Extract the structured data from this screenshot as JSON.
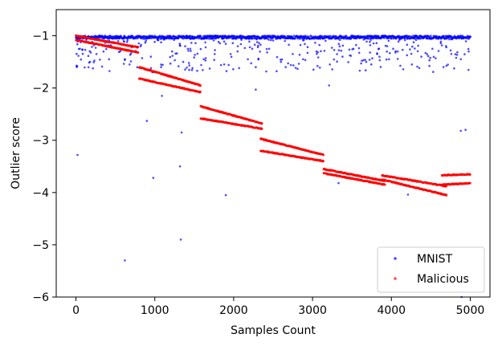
{
  "chart_data": {
    "type": "scatter",
    "xlabel": "Samples Count",
    "ylabel": "Outlier score",
    "xlim": [
      -250,
      5250
    ],
    "ylim": [
      -6,
      -0.5
    ],
    "x_ticks": [
      0,
      1000,
      2000,
      3000,
      4000,
      5000
    ],
    "x_tick_labels": [
      "0",
      "1000",
      "2000",
      "3000",
      "4000",
      "5000"
    ],
    "y_ticks": [
      -6,
      -5,
      -4,
      -3,
      -2,
      -1
    ],
    "y_tick_labels": [
      "−6",
      "−5",
      "−4",
      "−3",
      "−2",
      "−1"
    ],
    "grid": false,
    "legend_position": "lower-right",
    "series": [
      {
        "name": "MNIST",
        "color": "#0000ff",
        "marker": "dot",
        "description_points": "dense band near -1 across all x, scattered down to about -1.7",
        "points": [
          [
            0,
            -1.0
          ],
          [
            100,
            -1.02
          ],
          [
            200,
            -1.05
          ],
          [
            300,
            -1.0
          ],
          [
            400,
            -1.03
          ],
          [
            500,
            -1.01
          ],
          [
            600,
            -1.04
          ],
          [
            700,
            -1.0
          ],
          [
            800,
            -1.02
          ],
          [
            900,
            -1.05
          ],
          [
            1000,
            -1.0
          ],
          [
            1100,
            -1.03
          ],
          [
            1200,
            -1.01
          ],
          [
            1300,
            -1.04
          ],
          [
            1400,
            -1.0
          ],
          [
            1500,
            -1.02
          ],
          [
            1600,
            -1.05
          ],
          [
            1700,
            -1.0
          ],
          [
            1800,
            -1.03
          ],
          [
            1900,
            -1.01
          ],
          [
            2000,
            -1.04
          ],
          [
            2100,
            -1.0
          ],
          [
            2200,
            -1.02
          ],
          [
            2300,
            -1.05
          ],
          [
            2400,
            -1.0
          ],
          [
            2500,
            -1.03
          ],
          [
            2600,
            -1.01
          ],
          [
            2700,
            -1.04
          ],
          [
            2800,
            -1.0
          ],
          [
            2900,
            -1.02
          ],
          [
            3000,
            -1.05
          ],
          [
            3100,
            -1.0
          ],
          [
            3200,
            -1.03
          ],
          [
            3300,
            -1.01
          ],
          [
            3400,
            -1.04
          ],
          [
            3500,
            -1.0
          ],
          [
            3600,
            -1.02
          ],
          [
            3700,
            -1.05
          ],
          [
            3800,
            -1.0
          ],
          [
            3900,
            -1.03
          ],
          [
            4000,
            -1.01
          ],
          [
            4100,
            -1.04
          ],
          [
            4200,
            -1.0
          ],
          [
            4300,
            -1.02
          ],
          [
            4400,
            -1.05
          ],
          [
            4500,
            -1.0
          ],
          [
            4600,
            -1.03
          ],
          [
            4700,
            -1.01
          ],
          [
            4800,
            -1.04
          ],
          [
            4900,
            -1.0
          ],
          [
            5000,
            -1.02
          ],
          [
            50,
            -1.25
          ],
          [
            180,
            -1.5
          ],
          [
            260,
            -1.35
          ],
          [
            420,
            -1.45
          ],
          [
            560,
            -1.3
          ],
          [
            680,
            -1.55
          ],
          [
            820,
            -1.2
          ],
          [
            950,
            -1.4
          ],
          [
            1080,
            -1.6
          ],
          [
            1220,
            -1.3
          ],
          [
            1360,
            -1.5
          ],
          [
            1450,
            -1.25
          ],
          [
            1620,
            -1.45
          ],
          [
            1760,
            -1.35
          ],
          [
            1880,
            -1.55
          ],
          [
            2050,
            -1.3
          ],
          [
            2180,
            -1.45
          ],
          [
            2280,
            -1.6
          ],
          [
            2450,
            -1.25
          ],
          [
            2600,
            -1.5
          ],
          [
            2750,
            -1.35
          ],
          [
            2880,
            -1.45
          ],
          [
            3050,
            -1.3
          ],
          [
            3220,
            -1.55
          ],
          [
            3380,
            -1.4
          ],
          [
            3520,
            -1.25
          ],
          [
            3680,
            -1.5
          ],
          [
            3820,
            -1.35
          ],
          [
            3970,
            -1.45
          ],
          [
            4080,
            -1.3
          ],
          [
            4260,
            -1.55
          ],
          [
            4380,
            -1.4
          ],
          [
            4520,
            -1.25
          ],
          [
            4660,
            -1.6
          ],
          [
            4760,
            -1.35
          ],
          [
            4880,
            -1.45
          ],
          [
            4980,
            -1.3
          ],
          [
            20,
            -3.28
          ],
          [
            620,
            -5.3
          ],
          [
            900,
            -2.63
          ],
          [
            980,
            -3.72
          ],
          [
            1090,
            -2.15
          ],
          [
            1320,
            -3.5
          ],
          [
            1330,
            -4.9
          ],
          [
            1340,
            -2.85
          ],
          [
            1900,
            -4.05
          ],
          [
            2280,
            -2.03
          ],
          [
            3210,
            -1.95
          ],
          [
            3330,
            -3.82
          ],
          [
            4210,
            -4.04
          ],
          [
            4880,
            -2.82
          ],
          [
            4940,
            -2.8
          ],
          [
            4890,
            -6.0
          ]
        ]
      },
      {
        "name": "Malicious",
        "color": "#ff0000",
        "marker": "dot",
        "segments": [
          {
            "x_start": 0,
            "x_end": 790,
            "y_start": -1.0,
            "y_end": -1.22
          },
          {
            "x_start": 0,
            "x_end": 790,
            "y_start": -1.08,
            "y_end": -1.32
          },
          {
            "x_start": 800,
            "x_end": 1580,
            "y_start": -1.6,
            "y_end": -1.95
          },
          {
            "x_start": 800,
            "x_end": 1580,
            "y_start": -1.82,
            "y_end": -2.08
          },
          {
            "x_start": 1580,
            "x_end": 2360,
            "y_start": -2.35,
            "y_end": -2.68
          },
          {
            "x_start": 1580,
            "x_end": 2360,
            "y_start": -2.58,
            "y_end": -2.78
          },
          {
            "x_start": 2340,
            "x_end": 3140,
            "y_start": -2.97,
            "y_end": -3.28
          },
          {
            "x_start": 2340,
            "x_end": 3140,
            "y_start": -3.2,
            "y_end": -3.4
          },
          {
            "x_start": 3140,
            "x_end": 3920,
            "y_start": -3.55,
            "y_end": -3.78
          },
          {
            "x_start": 3140,
            "x_end": 3920,
            "y_start": -3.63,
            "y_end": -3.85
          },
          {
            "x_start": 3880,
            "x_end": 4700,
            "y_start": -3.67,
            "y_end": -3.88
          },
          {
            "x_start": 3880,
            "x_end": 4700,
            "y_start": -3.75,
            "y_end": -4.05
          },
          {
            "x_start": 4640,
            "x_end": 5000,
            "y_start": -3.67,
            "y_end": -3.65
          },
          {
            "x_start": 4640,
            "x_end": 5000,
            "y_start": -3.85,
            "y_end": -3.82
          }
        ]
      }
    ]
  }
}
